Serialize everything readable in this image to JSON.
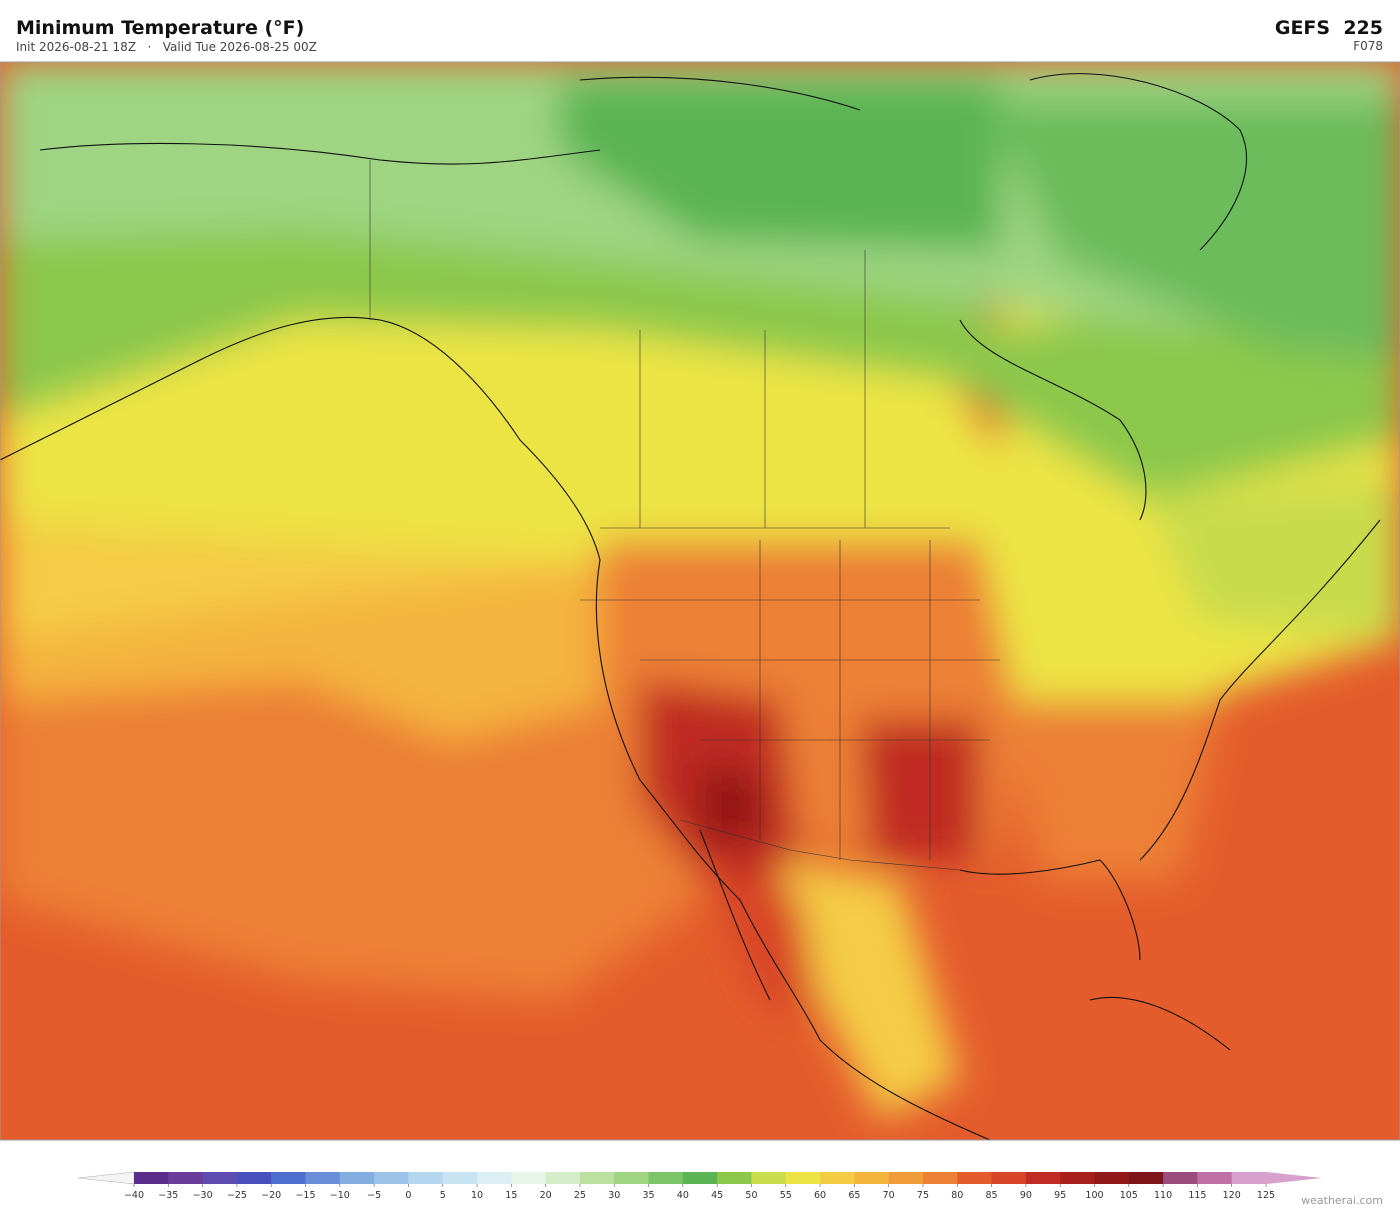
{
  "header": {
    "title": "Minimum Temperature  (°F)",
    "subtitle": "Init 2026-08-21 18Z   ·   Valid Tue 2026-08-25 00Z",
    "model": "GEFS  225",
    "forecast_hour": "F078"
  },
  "colorbar": {
    "ticks": [
      {
        "value": -40,
        "label": "−40"
      },
      {
        "value": -35,
        "label": "−35"
      },
      {
        "value": -30,
        "label": "−30"
      },
      {
        "value": -25,
        "label": "−25"
      },
      {
        "value": -20,
        "label": "−20"
      },
      {
        "value": -15,
        "label": "−15"
      },
      {
        "value": -10,
        "label": "−10"
      },
      {
        "value": -5,
        "label": "−5"
      },
      0,
      5,
      10,
      15,
      20,
      25,
      30,
      35,
      40,
      45,
      50,
      55,
      60,
      65,
      70,
      75,
      80,
      85,
      90,
      95,
      100,
      105,
      110,
      115,
      120,
      125
    ],
    "colors": [
      "#5a2d8c",
      "#6a3d9a",
      "#5e4cb0",
      "#4a4fc0",
      "#4f6fd0",
      "#6a8fd8",
      "#84aee0",
      "#9cc4e8",
      "#b4d6ee",
      "#c8e4f2",
      "#dcf0f4",
      "#e8f4e8",
      "#d4ecc8",
      "#bce0a0",
      "#9ed482",
      "#7cc468",
      "#5ab452",
      "#8cc84c",
      "#c8dc4c",
      "#ece444",
      "#f4cc44",
      "#f4b43c",
      "#f09c38",
      "#ec8034",
      "#e45c2c",
      "#d84428",
      "#c02c24",
      "#a8201c",
      "#901818",
      "#7c1418",
      "#9c4c7c",
      "#c070a4",
      "#d8a0cc"
    ]
  },
  "footer": {
    "credit": "weatherai.com"
  }
}
